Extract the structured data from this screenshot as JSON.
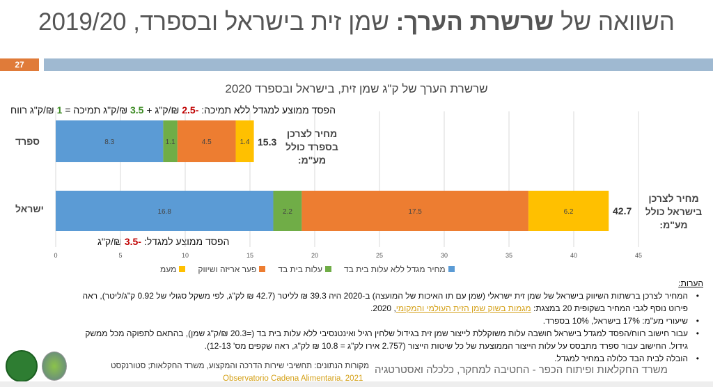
{
  "title": {
    "regular": "השוואה של ",
    "bold": "שרשרת הערך:",
    "rest": " שמן זית בישראל ובספרד, 2019/20"
  },
  "page_number": "27",
  "annotations": {
    "spain_prefix": "הפסד ממוצע למגדל ללא תמיכה: ",
    "spain_loss": "-2.5",
    "spain_mid1": " ₪/ק\"ג + ",
    "spain_support": "3.5",
    "spain_mid2": " ₪/ק\"ג תמיכה = ",
    "spain_profit": "1",
    "spain_suffix": " ₪/ק\"ג רווח",
    "israel_prefix": "הפסד ממוצע למגדל: ",
    "israel_loss": "-3.5",
    "israel_suffix": " ₪/ק\"ג"
  },
  "chart_data": {
    "type": "bar",
    "orientation": "horizontal",
    "stacked": true,
    "title": "שרשרת הערך של ק\"ג שמן זית, בישראל ובספרד 2020",
    "categories": [
      "ספרד",
      "ישראל"
    ],
    "series": [
      {
        "name": "מחיר מגדל ללא עלות בית בד",
        "color": "#5b9bd5",
        "values": [
          8.3,
          16.8
        ]
      },
      {
        "name": "עלות בית בד",
        "color": "#70ad47",
        "values": [
          1.1,
          2.2
        ]
      },
      {
        "name": "פער אריזה ושיווק",
        "color": "#ed7d31",
        "values": [
          4.5,
          17.5
        ]
      },
      {
        "name": "מעמ",
        "color": "#ffc000",
        "values": [
          1.4,
          6.2
        ]
      }
    ],
    "totals": [
      "15.3",
      "42.7"
    ],
    "total_labels": [
      "מחיר לצרכן בספרד כולל מע\"מ:",
      "מחיר לצרכן בישראל כולל מע\"מ:"
    ],
    "xlim": [
      0,
      45
    ],
    "xticks": [
      "0",
      "5",
      "10",
      "15",
      "20",
      "25",
      "30",
      "35",
      "40",
      "45"
    ],
    "grid": true,
    "legend": "bottom"
  },
  "notes": {
    "heading": "הערות:",
    "items": [
      "המחיר לצרכן ברשתות השיווק בישראל של שמן זית ישראלי (שמן עם תו האיכות של המועצה) ב-2020 היה 39.3 ₪ לליטר (42.7 ₪ לק\"ג, לפי משקל סגולי של 0.92 ק\"ג/ליטר), ראה",
      "שיעורי מע\"מ: 17% בישראל, 10% בספרד.",
      "עבור חישוב רווח/הפסד למגדל בישראל חושבה עלות משוקללת לייצור שמן זית בגידול שלחין רגיל ואינטנסיבי ללא עלות בית בד (=20.3 ₪/ק\"ג שמן), בהתאם לתפוקה מכל ממשק",
      "הובלה לבית הבד כלולה במחיר למגדל."
    ],
    "item1_cont": "פירוט נוסף לגבי המחיר בשקופית 20 במצגת: ",
    "item1_link": "מגמות בשוק שמן הזית העולמי והמקומי",
    "item1_end": ", 2020.",
    "item3_cont": "גידול. החישוב עבור ספרד מתבסס על עלות הייצור הממוצעת של כל שיטות הייצור (2.757 אירו לק\"ג = 10.8 ₪ לק\"ג, ראה שקפים מס' 12-13)."
  },
  "sources": {
    "text": "מקורות הנתונים: תחשיבי שירות הדרכה והמקצוע, משרד החקלאות; סטורנקסט",
    "link": "Observatorio Cadena Alimentaria, 2021"
  },
  "footer": "משרד החקלאות ופיתוח הכפר  - החטיבה למחקר, כלכלה ואסטרטגיה"
}
